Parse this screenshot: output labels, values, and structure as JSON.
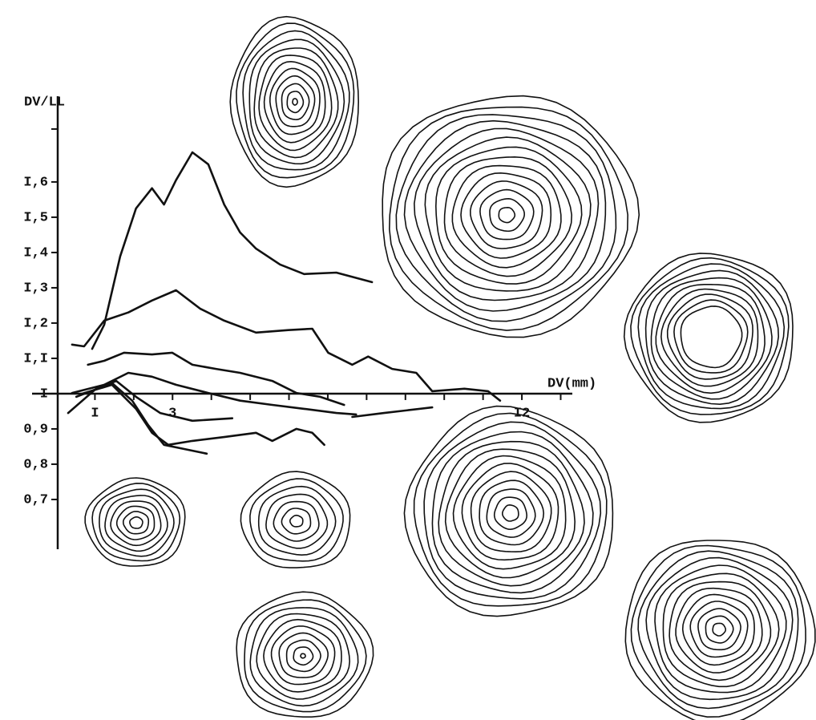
{
  "chart_data": {
    "type": "line",
    "ylabel": "DV/LL",
    "xlabel": "DV(mm)",
    "color": "#111111",
    "xlim": [
      0,
      13.3
    ],
    "ylim": [
      0.559,
      1.843
    ],
    "xaxis_at": 1,
    "xticks": [
      {
        "value": 1,
        "label": "I"
      },
      3,
      {
        "value": 12,
        "label": "I2"
      }
    ],
    "xminorticks": [
      2,
      4,
      5,
      6,
      7,
      8,
      9,
      10,
      11,
      13
    ],
    "yticks": [
      {
        "value": 1.6,
        "label": "I,6"
      },
      {
        "value": 1.5,
        "label": "I,5"
      },
      {
        "value": 1.4,
        "label": "I,4"
      },
      {
        "value": 1.3,
        "label": "I,3"
      },
      {
        "value": 1.2,
        "label": "I,2"
      },
      {
        "value": 1.1,
        "label": "I,I"
      },
      {
        "value": 1,
        "label": "I"
      },
      {
        "value": 0.9,
        "label": "0,9"
      },
      {
        "value": 0.8,
        "label": "0,8"
      },
      {
        "value": 0.7,
        "label": "0,7"
      }
    ],
    "yminorticks": [
      1.75
    ],
    "series": [
      {
        "x": [
          0.93,
          1.24,
          1.65,
          2.06,
          2.47,
          2.78,
          3.09,
          3.51,
          3.92,
          4.33,
          4.74,
          5.15,
          5.77,
          6.39,
          7.22,
          8.14
        ],
        "values": [
          1.127,
          1.195,
          1.389,
          1.525,
          1.582,
          1.536,
          1.605,
          1.684,
          1.65,
          1.536,
          1.457,
          1.411,
          1.366,
          1.339,
          1.343,
          1.316
        ]
      },
      {
        "x": [
          0.41,
          0.72,
          1.24,
          1.86,
          2.47,
          3.09,
          3.71,
          4.33,
          5.15,
          5.98,
          6.6,
          7.01,
          7.63,
          8.04,
          8.66,
          9.28,
          9.69,
          10.52,
          11.13,
          11.44
        ],
        "values": [
          1.139,
          1.134,
          1.207,
          1.23,
          1.264,
          1.293,
          1.241,
          1.207,
          1.173,
          1.18,
          1.184,
          1.116,
          1.082,
          1.105,
          1.07,
          1.059,
          1.007,
          1.014,
          1.007,
          0.98
        ]
      },
      {
        "x": [
          0.82,
          1.24,
          1.75,
          2.47,
          2.99,
          3.51,
          4.12,
          4.74,
          5.57,
          6.19,
          6.8,
          7.42
        ],
        "values": [
          1.082,
          1.093,
          1.116,
          1.111,
          1.116,
          1.082,
          1.07,
          1.059,
          1.036,
          1.002,
          0.991,
          0.968
        ]
      },
      {
        "x": [
          0.41,
          1.24,
          1.86,
          2.47,
          3.09,
          3.92,
          4.74,
          5.57,
          6.39,
          7.22,
          7.73
        ],
        "values": [
          1.002,
          1.025,
          1.059,
          1.048,
          1.025,
          1.002,
          0.98,
          0.968,
          0.957,
          0.945,
          0.941
        ]
      },
      {
        "x": [
          0.62,
          1.44,
          2.06,
          2.47,
          2.89,
          3.51,
          4.33,
          5.15,
          5.57,
          6.19,
          6.6,
          6.91
        ],
        "values": [
          0.998,
          1.025,
          0.957,
          0.889,
          0.855,
          0.866,
          0.877,
          0.889,
          0.866,
          0.9,
          0.889,
          0.855
        ]
      },
      {
        "x": [
          0.52,
          1.44,
          1.96,
          2.37,
          2.78,
          3.3,
          3.88
        ],
        "values": [
          0.991,
          1.03,
          0.98,
          0.911,
          0.855,
          0.843,
          0.83
        ]
      },
      {
        "x": [
          0.31,
          1.03,
          1.55,
          2.06,
          2.68,
          3.51,
          4.54
        ],
        "values": [
          0.945,
          1.014,
          1.036,
          0.991,
          0.945,
          0.923,
          0.93
        ]
      },
      {
        "x": [
          7.63,
          8.45,
          9.69
        ],
        "values": [
          0.934,
          0.945,
          0.961
        ]
      }
    ]
  }
}
